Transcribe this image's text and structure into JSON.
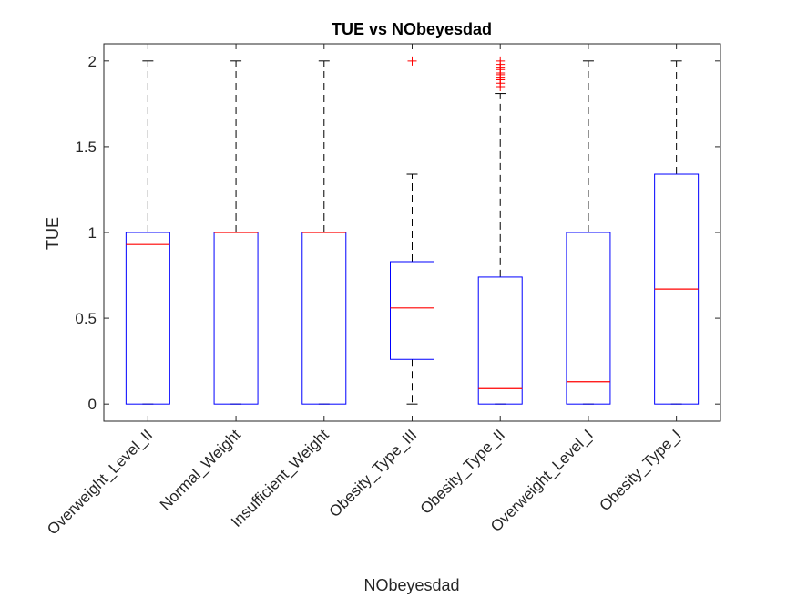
{
  "chart_data": {
    "type": "box",
    "title": "TUE vs NObeyesdad",
    "xlabel": "NObeyesdad",
    "ylabel": "TUE",
    "ylim": [
      -0.1,
      2.1
    ],
    "yticks": [
      0,
      0.5,
      1,
      1.5,
      2
    ],
    "ytick_labels": [
      "0",
      "0.5",
      "1",
      "1.5",
      "2"
    ],
    "categories": [
      "Overweight_Level_II",
      "Normal_Weight",
      "Insufficient_Weight",
      "Obesity_Type_III",
      "Obesity_Type_II",
      "Overweight_Level_I",
      "Obesity_Type_I"
    ],
    "boxes": [
      {
        "q1": 0,
        "median": 0.93,
        "q3": 1.0,
        "whisker_low": 0,
        "whisker_high": 2.0,
        "outliers": []
      },
      {
        "q1": 0,
        "median": 1.0,
        "q3": 1.0,
        "whisker_low": 0,
        "whisker_high": 2.0,
        "outliers": []
      },
      {
        "q1": 0,
        "median": 1.0,
        "q3": 1.0,
        "whisker_low": 0,
        "whisker_high": 2.0,
        "outliers": []
      },
      {
        "q1": 0.26,
        "median": 0.56,
        "q3": 0.83,
        "whisker_low": 0,
        "whisker_high": 1.34,
        "outliers": [
          2.0
        ]
      },
      {
        "q1": 0,
        "median": 0.09,
        "q3": 0.74,
        "whisker_low": 0,
        "whisker_high": 1.81,
        "outliers": [
          1.85,
          1.87,
          1.89,
          1.9,
          1.92,
          1.93,
          1.95,
          1.96,
          1.98,
          2.0
        ]
      },
      {
        "q1": 0,
        "median": 0.13,
        "q3": 1.0,
        "whisker_low": 0,
        "whisker_high": 2.0,
        "outliers": []
      },
      {
        "q1": 0,
        "median": 0.67,
        "q3": 1.34,
        "whisker_low": 0,
        "whisker_high": 2.0,
        "outliers": []
      }
    ],
    "colors": {
      "box": "#0000ff",
      "median": "#ff0000",
      "whisker": "#000000",
      "outlier": "#ff0000",
      "axis": "#262626"
    },
    "grid": false
  }
}
